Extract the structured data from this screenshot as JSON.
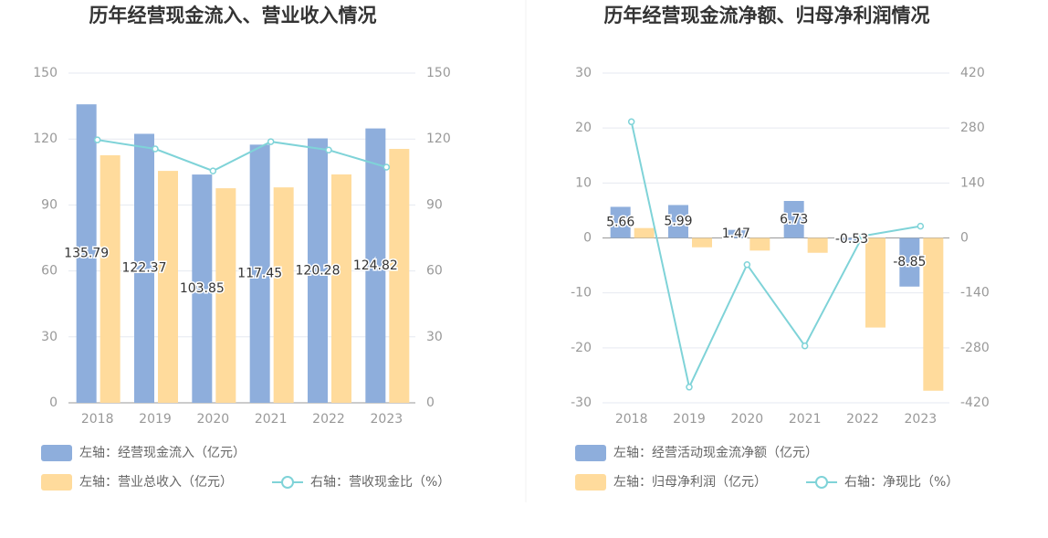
{
  "chart_data": [
    {
      "type": "bar",
      "title": "历年经营现金流入、营业收入情况",
      "categories": [
        "2018",
        "2019",
        "2020",
        "2021",
        "2022",
        "2023"
      ],
      "ylim": [
        0,
        150
      ],
      "yticks": [
        0,
        30,
        60,
        90,
        120,
        150
      ],
      "y2lim": [
        0,
        150
      ],
      "y2ticks": [
        0,
        30,
        60,
        90,
        120,
        150
      ],
      "grid": true,
      "series": [
        {
          "name": "左轴：经营现金流入（亿元）",
          "color": "#8eaedc",
          "values": [
            135.79,
            122.37,
            103.85,
            117.45,
            120.28,
            124.82
          ]
        },
        {
          "name": "左轴：营业总收入（亿元）",
          "color": "#ffdb9c",
          "values": [
            112.6,
            105.5,
            97.6,
            98.0,
            103.9,
            115.5
          ]
        },
        {
          "name": "右轴：营收现金比（%）",
          "color": "#7fd3d8",
          "type": "line",
          "axis": "y2",
          "values": [
            119.6,
            115.5,
            105.5,
            118.8,
            115.0,
            107.2
          ]
        }
      ]
    },
    {
      "type": "bar",
      "title": "历年经营现金流净额、归母净利润情况",
      "categories": [
        "2018",
        "2019",
        "2020",
        "2021",
        "2022",
        "2023"
      ],
      "ylim": [
        -30,
        30
      ],
      "yticks": [
        -30,
        -20,
        -10,
        0,
        10,
        20,
        30
      ],
      "y2lim": [
        -420,
        420
      ],
      "y2ticks": [
        -420,
        -280,
        -140,
        0,
        140,
        280,
        420
      ],
      "grid": true,
      "series": [
        {
          "name": "左轴：经营活动现金流净额（亿元）",
          "color": "#8eaedc",
          "values": [
            5.66,
            5.99,
            1.47,
            6.73,
            -0.53,
            -8.85
          ]
        },
        {
          "name": "左轴：归母净利润（亿元）",
          "color": "#ffdb9c",
          "values": [
            1.8,
            -1.7,
            -2.3,
            -2.7,
            -16.3,
            -27.8
          ]
        },
        {
          "name": "右轴：净现比（%）",
          "color": "#7fd3d8",
          "type": "line",
          "axis": "y2",
          "values": [
            296,
            -380,
            -68,
            -275,
            5,
            30
          ]
        }
      ]
    }
  ]
}
